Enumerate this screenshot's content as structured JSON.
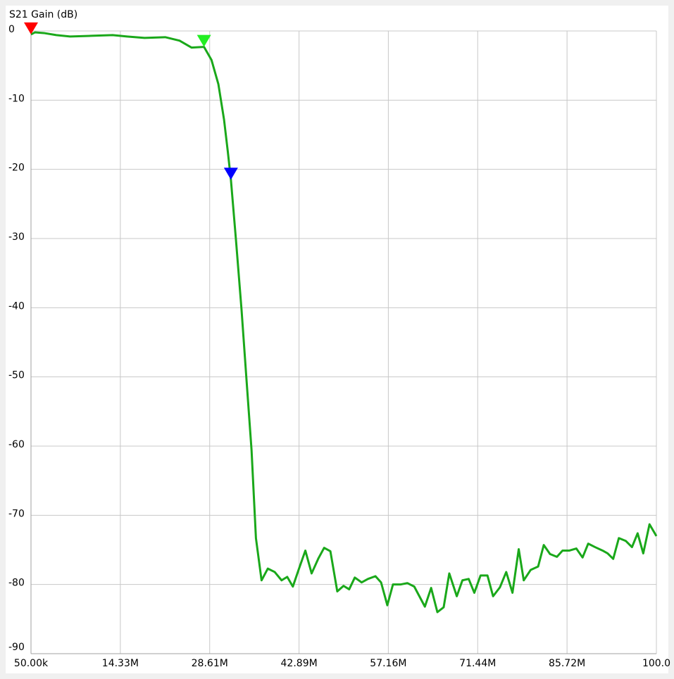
{
  "chart_data": {
    "type": "line",
    "y_axis_label": "S21 Gain (dB)",
    "xlim": [
      0.05,
      100
    ],
    "ylim": [
      -90,
      0
    ],
    "xticks": [
      {
        "value": 0.05,
        "label": "50.00k"
      },
      {
        "value": 14.33,
        "label": "14.33M"
      },
      {
        "value": 28.61,
        "label": "28.61M"
      },
      {
        "value": 42.89,
        "label": "42.89M"
      },
      {
        "value": 57.16,
        "label": "57.16M"
      },
      {
        "value": 71.44,
        "label": "71.44M"
      },
      {
        "value": 85.72,
        "label": "85.72M"
      },
      {
        "value": 100,
        "label": "100.0"
      }
    ],
    "yticks": [
      0,
      -10,
      -20,
      -30,
      -40,
      -50,
      -60,
      -70,
      -80,
      -90
    ],
    "grid": true,
    "x": [
      0.05,
      0.7,
      2.1,
      4.1,
      6.3,
      9.7,
      13.1,
      15.4,
      18.2,
      21.5,
      23.8,
      25.7,
      27.7,
      28.9,
      30.0,
      30.9,
      31.5,
      32.0,
      32.8,
      33.7,
      34.5,
      35.3,
      36.0,
      36.9,
      37.9,
      39.0,
      40.1,
      41.0,
      41.9,
      43.0,
      43.9,
      44.9,
      46.0,
      46.9,
      47.9,
      49.0,
      50.0,
      50.9,
      51.8,
      52.9,
      53.9,
      55.1,
      56.0,
      57.0,
      57.9,
      59.1,
      60.2,
      61.3,
      63.0,
      64.0,
      65.0,
      66.0,
      66.9,
      68.1,
      69.0,
      70.0,
      70.9,
      71.9,
      73.0,
      73.9,
      75.0,
      76.0,
      77.0,
      78.0,
      78.8,
      79.9,
      81.1,
      82.0,
      83.0,
      84.1,
      85.0,
      86.1,
      87.2,
      88.2,
      89.1,
      90.2,
      91.4,
      92.2,
      93.1,
      94.0,
      95.1,
      96.1,
      97.0,
      97.9,
      98.9,
      100.0
    ],
    "series": [
      {
        "color": "#1aa81a",
        "values": [
          -0.5,
          -0.2,
          -0.3,
          -0.6,
          -0.8,
          -0.7,
          -0.6,
          -0.8,
          -1.0,
          -0.9,
          -1.4,
          -2.4,
          -2.3,
          -4.2,
          -7.7,
          -12.8,
          -17.4,
          -21.5,
          -30.1,
          -40.3,
          -50.5,
          -60.6,
          -73.3,
          -79.4,
          -77.7,
          -78.2,
          -79.4,
          -78.9,
          -80.3,
          -77.4,
          -75.1,
          -78.4,
          -76.2,
          -74.7,
          -75.2,
          -81.0,
          -80.2,
          -80.7,
          -79.0,
          -79.7,
          -79.2,
          -78.8,
          -79.7,
          -83.0,
          -80.0,
          -80.0,
          -79.8,
          -80.3,
          -83.2,
          -80.5,
          -84.0,
          -83.3,
          -78.4,
          -81.7,
          -79.4,
          -79.2,
          -81.2,
          -78.7,
          -78.7,
          -81.7,
          -80.4,
          -78.2,
          -81.2,
          -74.9,
          -79.4,
          -77.9,
          -77.4,
          -74.3,
          -75.6,
          -76.0,
          -75.1,
          -75.1,
          -74.8,
          -76.1,
          -74.1,
          -74.6,
          -75.1,
          -75.5,
          -76.3,
          -73.3,
          -73.7,
          -74.6,
          -72.6,
          -75.5,
          -71.3,
          -73.0
        ]
      }
    ],
    "markers": [
      {
        "x": 0.05,
        "y": -0.5,
        "color": "#ff0000"
      },
      {
        "x": 27.7,
        "y": -2.3,
        "color": "#22ee22"
      },
      {
        "x": 32.0,
        "y": -21.5,
        "color": "#0000ff"
      }
    ]
  }
}
